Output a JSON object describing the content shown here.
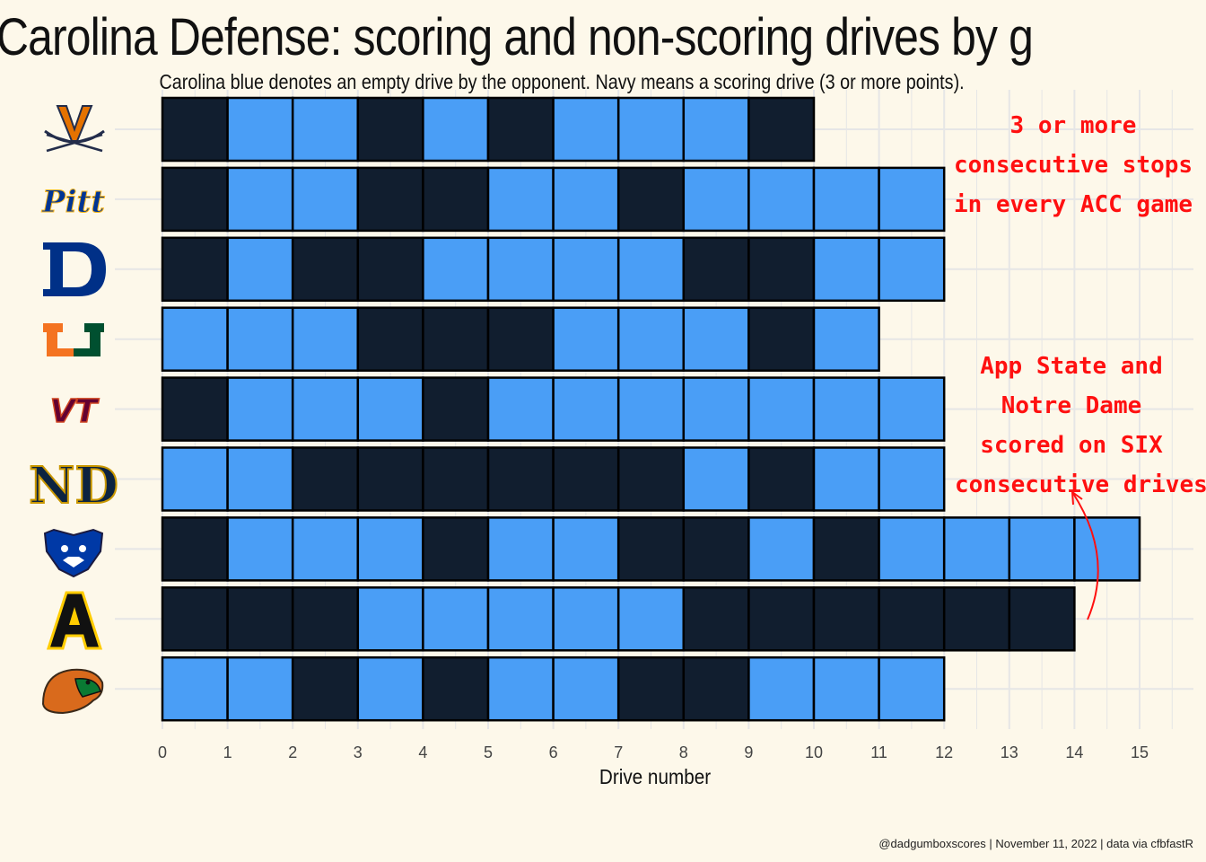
{
  "header": {
    "title": "Carolina Defense: scoring and non-scoring drives by g",
    "subtitle": "Carolina blue denotes an empty drive by the opponent. Navy means a scoring drive (3 or more points)."
  },
  "colors": {
    "empty_drive": "#4a9ef6",
    "scoring_drive": "#111e2f",
    "background": "#fdf8ea",
    "annotation": "#ff1010",
    "grid": "#e6e6e6"
  },
  "annotations": {
    "consecutive_stops": [
      "3 or more",
      "consecutive stops",
      "in every ACC game"
    ],
    "six_drives": [
      "App State and",
      "Notre Dame",
      "scored on SIX",
      "consecutive drives"
    ]
  },
  "caption": "@dadgumboxscores | November 11, 2022 | data via cfbfastR",
  "chart_data": {
    "type": "bar",
    "orientation": "horizontal-stacked",
    "xlabel": "Drive number",
    "ylabel": "",
    "xlim": [
      0,
      15
    ],
    "xticks": [
      0,
      1,
      2,
      3,
      4,
      5,
      6,
      7,
      8,
      9,
      10,
      11,
      12,
      13,
      14,
      15
    ],
    "grid": true,
    "legend": "none",
    "value_key": {
      "0": "empty drive (Carolina blue)",
      "1": "scoring drive (navy)"
    },
    "categories": [
      "virginia-logo",
      "pitt-logo",
      "duke-logo",
      "miami-logo",
      "virginia-tech-logo",
      "notre-dame-logo",
      "georgia-state-logo",
      "app-state-logo",
      "florida-am-logo"
    ],
    "drives": [
      [
        1,
        0,
        0,
        1,
        0,
        1,
        0,
        0,
        0,
        1
      ],
      [
        1,
        0,
        0,
        1,
        1,
        0,
        0,
        1,
        0,
        0,
        0,
        0
      ],
      [
        1,
        0,
        1,
        1,
        0,
        0,
        0,
        0,
        1,
        1,
        0,
        0
      ],
      [
        0,
        0,
        0,
        1,
        1,
        1,
        0,
        0,
        0,
        1,
        0
      ],
      [
        1,
        0,
        0,
        0,
        1,
        0,
        0,
        0,
        0,
        0,
        0,
        0
      ],
      [
        0,
        0,
        1,
        1,
        1,
        1,
        1,
        1,
        0,
        1,
        0,
        0
      ],
      [
        1,
        0,
        0,
        0,
        1,
        0,
        0,
        1,
        1,
        0,
        1,
        0,
        0,
        0,
        0
      ],
      [
        1,
        1,
        1,
        0,
        0,
        0,
        0,
        0,
        1,
        1,
        1,
        1,
        1,
        1
      ],
      [
        0,
        0,
        1,
        0,
        1,
        0,
        0,
        1,
        1,
        0,
        0,
        0
      ]
    ]
  }
}
